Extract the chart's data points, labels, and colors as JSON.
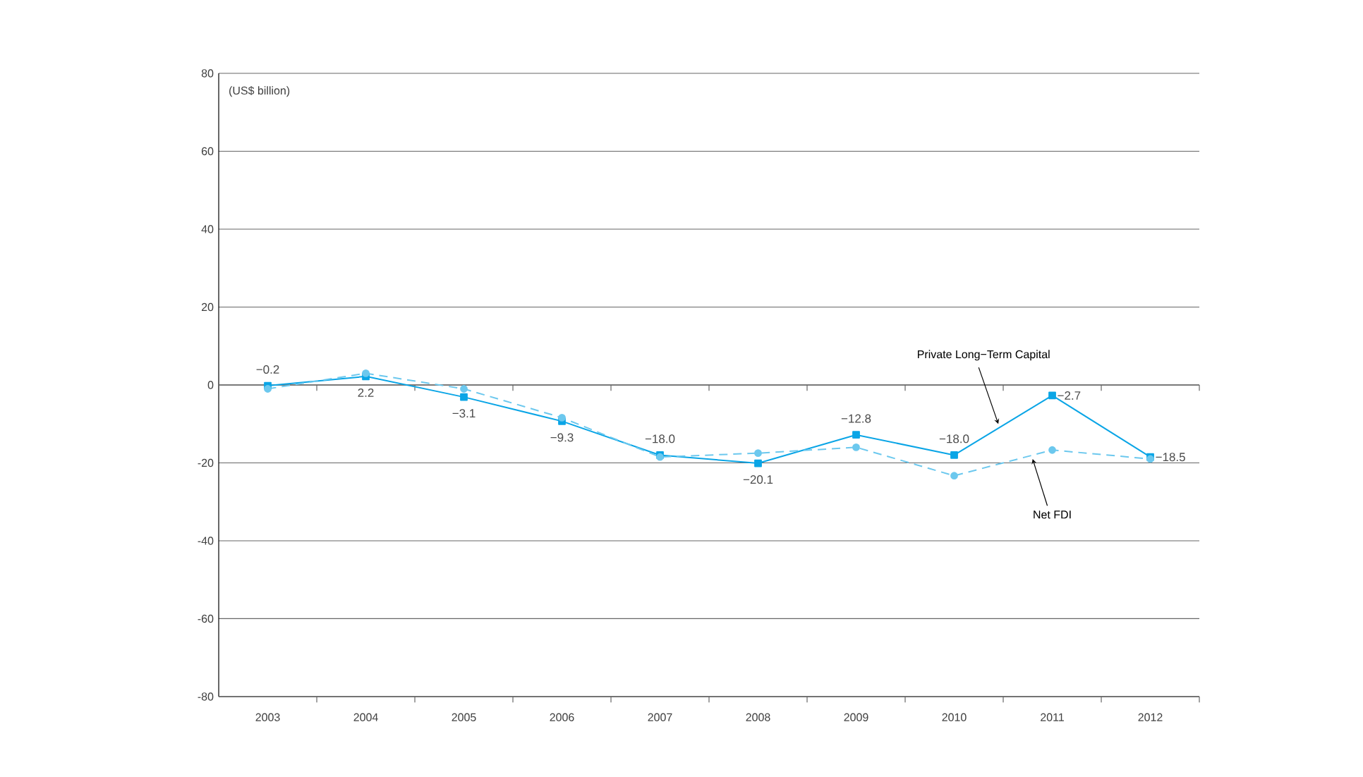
{
  "chart_data": {
    "type": "line",
    "categories": [
      "2003",
      "2004",
      "2005",
      "2006",
      "2007",
      "2008",
      "2009",
      "2010",
      "2011",
      "2012"
    ],
    "series": [
      {
        "name": "Private Long−Term Capital",
        "color": "#0aa5e6",
        "line_style": "solid",
        "marker": "square",
        "values": [
          -0.2,
          2.2,
          -3.1,
          -9.3,
          -18.0,
          -20.1,
          -12.8,
          -18.0,
          -2.7,
          -18.5
        ],
        "value_labels": [
          "−0.2",
          "2.2",
          "−3.1",
          "−9.3",
          "−18.0",
          "−20.1",
          "−12.8",
          "−18.0",
          "−2.7",
          "−18.5"
        ]
      },
      {
        "name": "Net FDI",
        "color": "#6cc8ee",
        "line_style": "dashed",
        "marker": "circle",
        "values": [
          -1,
          3,
          -1,
          -8.4,
          -18.5,
          -17.5,
          -16,
          -23.3,
          -16.7,
          -19
        ]
      }
    ],
    "ylim": [
      -80,
      80
    ],
    "yticks": [
      -80,
      -60,
      -40,
      -20,
      0,
      20,
      40,
      60,
      80
    ],
    "grid": "y",
    "annotations": [
      "(US$ billion)"
    ]
  }
}
